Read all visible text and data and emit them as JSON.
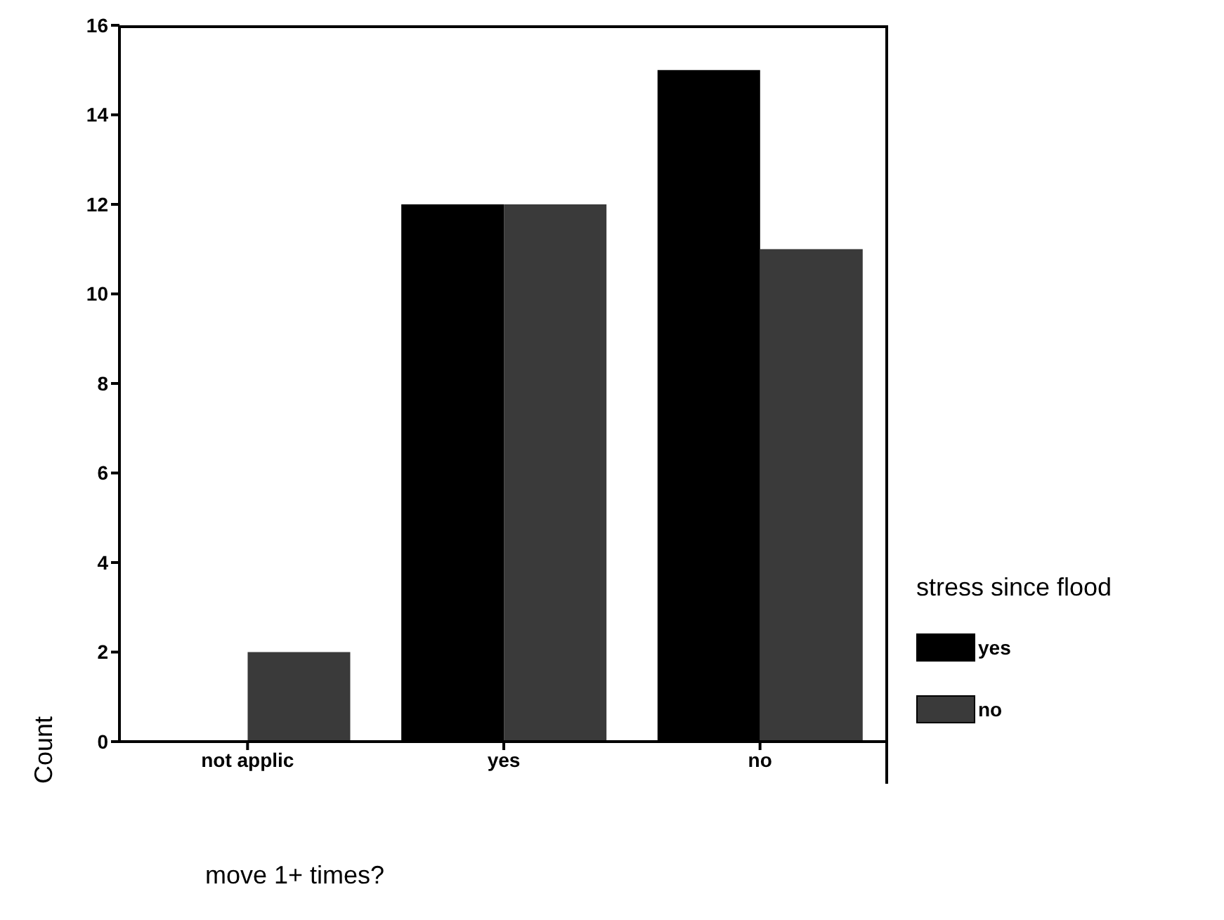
{
  "chart_data": {
    "type": "bar",
    "xlabel": "move 1+ times?",
    "ylabel": "Count",
    "legend_title": "stress since flood",
    "categories": [
      "not applic",
      "yes",
      "no"
    ],
    "series": [
      {
        "name": "yes",
        "color": "#000000",
        "values": [
          0,
          12,
          15
        ]
      },
      {
        "name": "no",
        "color": "#3a3a3a",
        "values": [
          2,
          12,
          11
        ]
      }
    ],
    "ylim": [
      0,
      16
    ],
    "yticks": [
      0,
      2,
      4,
      6,
      8,
      10,
      12,
      14,
      16
    ],
    "legend": "right",
    "grid": false
  }
}
